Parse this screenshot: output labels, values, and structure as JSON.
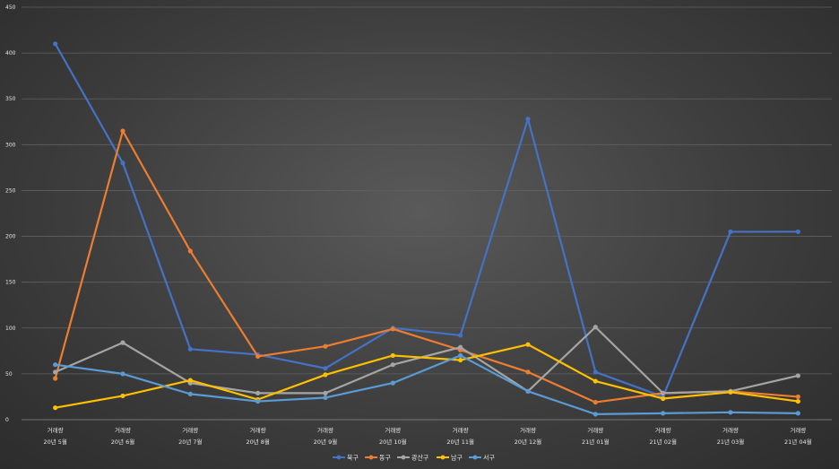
{
  "chart_data": {
    "type": "line",
    "categories": [
      [
        "거래량",
        "20년 5월"
      ],
      [
        "거래량",
        "20년 6월"
      ],
      [
        "거래량",
        "20년 7월"
      ],
      [
        "거래량",
        "20년 8월"
      ],
      [
        "거래량",
        "20년 9월"
      ],
      [
        "거래량",
        "20년 10월"
      ],
      [
        "거래량",
        "20년 11월"
      ],
      [
        "거래량",
        "20년 12월"
      ],
      [
        "거래량",
        "21년 01월"
      ],
      [
        "거래량",
        "21년 02월"
      ],
      [
        "거래량",
        "21년 03월"
      ],
      [
        "거래량",
        "21년 04월"
      ]
    ],
    "ylim": [
      0,
      450
    ],
    "yticks": [
      0,
      50,
      100,
      150,
      200,
      250,
      300,
      350,
      400,
      450
    ],
    "grid": true,
    "legend_position": "bottom",
    "series": [
      {
        "name": "북구",
        "color": "#4472C4",
        "values": [
          410,
          280,
          77,
          71,
          56,
          100,
          92,
          328,
          52,
          25,
          205,
          205
        ]
      },
      {
        "name": "동구",
        "color": "#ED7D31",
        "values": [
          45,
          315,
          184,
          69,
          80,
          99,
          76,
          52,
          19,
          29,
          31,
          25
        ]
      },
      {
        "name": "광산구",
        "color": "#A5A5A5",
        "values": [
          52,
          84,
          40,
          29,
          29,
          60,
          79,
          31,
          101,
          29,
          31,
          48
        ]
      },
      {
        "name": "남구",
        "color": "#FFC000",
        "values": [
          13,
          26,
          43,
          22,
          49,
          70,
          65,
          82,
          42,
          23,
          30,
          20
        ]
      },
      {
        "name": "서구",
        "color": "#5B9BD5",
        "values": [
          60,
          50,
          28,
          20,
          24,
          40,
          70,
          31,
          6,
          7,
          8,
          7
        ]
      }
    ]
  }
}
